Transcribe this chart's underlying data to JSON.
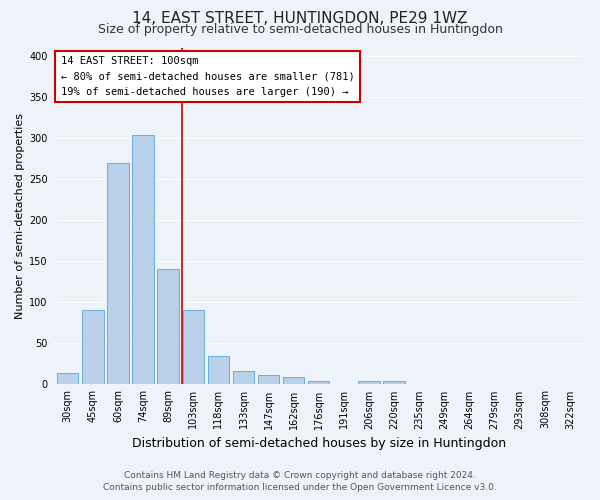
{
  "title": "14, EAST STREET, HUNTINGDON, PE29 1WZ",
  "subtitle": "Size of property relative to semi-detached houses in Huntingdon",
  "xlabel": "Distribution of semi-detached houses by size in Huntingdon",
  "ylabel": "Number of semi-detached properties",
  "categories": [
    "30sqm",
    "45sqm",
    "60sqm",
    "74sqm",
    "89sqm",
    "103sqm",
    "118sqm",
    "133sqm",
    "147sqm",
    "162sqm",
    "176sqm",
    "191sqm",
    "206sqm",
    "220sqm",
    "235sqm",
    "249sqm",
    "264sqm",
    "279sqm",
    "293sqm",
    "308sqm",
    "322sqm"
  ],
  "values": [
    14,
    91,
    269,
    304,
    141,
    90,
    35,
    16,
    11,
    9,
    4,
    0,
    4,
    4,
    0,
    0,
    0,
    0,
    0,
    0,
    0
  ],
  "bar_color": "#b8d0ea",
  "bar_edge_color": "#6aaed6",
  "vline_color": "#cc0000",
  "vline_x_index": 5,
  "annotation_title": "14 EAST STREET: 100sqm",
  "annotation_line1": "← 80% of semi-detached houses are smaller (781)",
  "annotation_line2": "19% of semi-detached houses are larger (190) →",
  "annotation_box_facecolor": "#ffffff",
  "annotation_box_edgecolor": "#cc0000",
  "ylim": [
    0,
    410
  ],
  "yticks": [
    0,
    50,
    100,
    150,
    200,
    250,
    300,
    350,
    400
  ],
  "footer_line1": "Contains HM Land Registry data © Crown copyright and database right 2024.",
  "footer_line2": "Contains public sector information licensed under the Open Government Licence v3.0.",
  "bg_color": "#eef2f9",
  "grid_color": "#ffffff",
  "title_fontsize": 11,
  "subtitle_fontsize": 9,
  "ylabel_fontsize": 8,
  "xlabel_fontsize": 9,
  "tick_fontsize": 7,
  "annot_fontsize": 7.5,
  "footer_fontsize": 6.5
}
